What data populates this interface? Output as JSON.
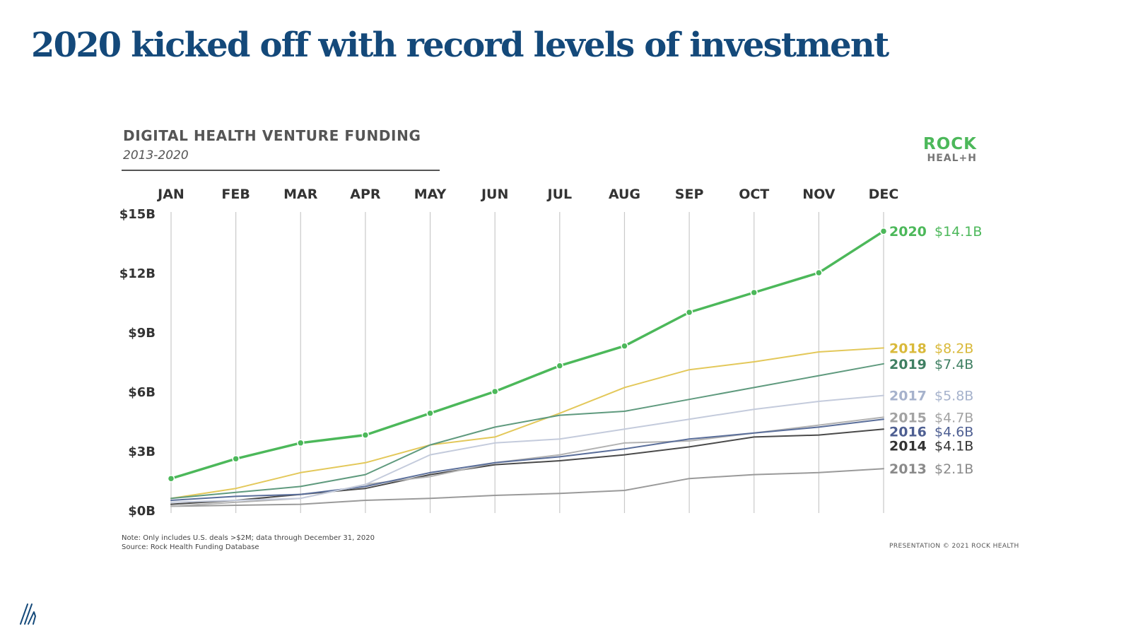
{
  "slide": {
    "title": "2020 kicked off with record levels of investment"
  },
  "logo": {
    "line1": "ROCK",
    "line2": "HEAL+H"
  },
  "footer": {
    "note": "Note: Only includes U.S. deals >$2M; data through December 31, 2020",
    "source": "Source: Rock Health Funding Database",
    "copyright": "PRESENTATION © 2021 ROCK HEALTH"
  },
  "corner_icon": "slash-logo-icon",
  "chart_data": {
    "type": "line",
    "title": "DIGITAL HEALTH VENTURE FUNDING",
    "subtitle": "2013-2020",
    "xlabel": "",
    "ylabel": "",
    "categories": [
      "JAN",
      "FEB",
      "MAR",
      "APR",
      "MAY",
      "JUN",
      "JUL",
      "AUG",
      "SEP",
      "OCT",
      "NOV",
      "DEC"
    ],
    "ylim": [
      0,
      15
    ],
    "yticks": [
      0,
      3,
      6,
      9,
      12,
      15
    ],
    "ytick_labels": [
      "$0B",
      "$3B",
      "$6B",
      "$9B",
      "$12B",
      "$15B"
    ],
    "grid": "vertical",
    "legend": "right",
    "series": [
      {
        "name": "2013",
        "end_label": "$2.1B",
        "color": "#9a9a9a",
        "label_color": "#8a8a8a",
        "width": 2,
        "values": [
          0.2,
          0.25,
          0.3,
          0.5,
          0.6,
          0.75,
          0.85,
          1.0,
          1.6,
          1.8,
          1.9,
          2.1
        ]
      },
      {
        "name": "2014",
        "end_label": "$4.1B",
        "color": "#4a4a4a",
        "label_color": "#333333",
        "width": 2,
        "values": [
          0.3,
          0.5,
          0.8,
          1.1,
          1.8,
          2.3,
          2.5,
          2.8,
          3.2,
          3.7,
          3.8,
          4.1
        ]
      },
      {
        "name": "2015",
        "end_label": "$4.7B",
        "color": "#b2b2b2",
        "label_color": "#a3a3a3",
        "width": 2,
        "values": [
          0.2,
          0.4,
          0.6,
          1.3,
          1.7,
          2.4,
          2.8,
          3.4,
          3.5,
          3.9,
          4.3,
          4.7
        ]
      },
      {
        "name": "2016",
        "end_label": "$4.6B",
        "color": "#5a6e9a",
        "label_color": "#4e5f92",
        "width": 2,
        "values": [
          0.5,
          0.7,
          0.8,
          1.2,
          1.9,
          2.4,
          2.7,
          3.1,
          3.6,
          3.9,
          4.2,
          4.6
        ]
      },
      {
        "name": "2017",
        "end_label": "$5.8B",
        "color": "#c4cbdc",
        "label_color": "#a6b2cc",
        "width": 2,
        "values": [
          0.4,
          0.5,
          0.6,
          1.3,
          2.8,
          3.4,
          3.6,
          4.1,
          4.6,
          5.1,
          5.5,
          5.8
        ]
      },
      {
        "name": "2018",
        "end_label": "$8.2B",
        "color": "#e3c85a",
        "label_color": "#d9b93a",
        "width": 2,
        "values": [
          0.6,
          1.1,
          1.9,
          2.4,
          3.3,
          3.7,
          4.9,
          6.2,
          7.1,
          7.5,
          8.0,
          8.2
        ]
      },
      {
        "name": "2019",
        "end_label": "$7.4B",
        "color": "#5f9a7e",
        "label_color": "#3f7f62",
        "width": 2,
        "values": [
          0.6,
          0.9,
          1.2,
          1.8,
          3.3,
          4.2,
          4.8,
          5.0,
          5.6,
          6.2,
          6.8,
          7.4
        ]
      },
      {
        "name": "2020",
        "end_label": "$14.1B",
        "color": "#4cb85a",
        "label_color": "#4cb85a",
        "width": 3.5,
        "markers": true,
        "values": [
          1.6,
          2.6,
          3.4,
          3.8,
          4.9,
          6.0,
          7.3,
          8.3,
          10.0,
          11.0,
          12.0,
          14.1
        ]
      }
    ]
  }
}
